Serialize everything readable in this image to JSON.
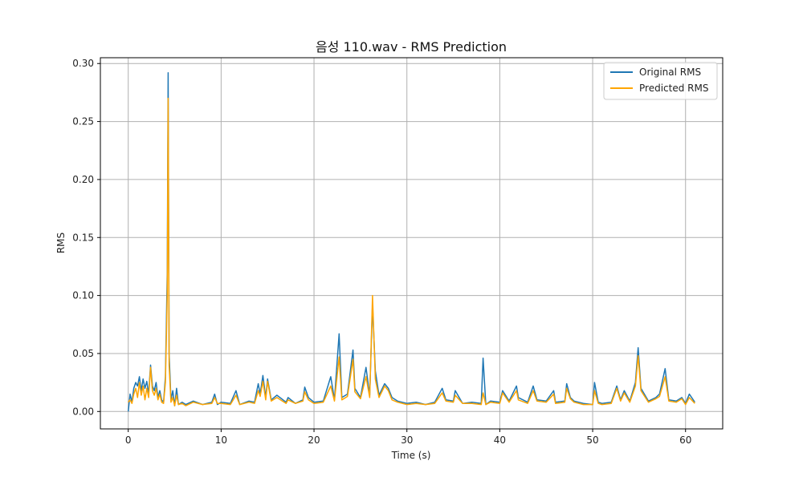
{
  "chart_data": {
    "type": "line",
    "title": "음성 110.wav - RMS Prediction",
    "xlabel": "Time (s)",
    "ylabel": "RMS",
    "xlim": [
      -3,
      64
    ],
    "ylim": [
      -0.015,
      0.305
    ],
    "x_ticks": [
      0,
      10,
      20,
      30,
      40,
      50,
      60
    ],
    "x_tick_labels": [
      "0",
      "10",
      "20",
      "30",
      "40",
      "50",
      "60"
    ],
    "y_ticks": [
      0.0,
      0.05,
      0.1,
      0.15,
      0.2,
      0.25,
      0.3
    ],
    "y_tick_labels": [
      "0.00",
      "0.05",
      "0.10",
      "0.15",
      "0.20",
      "0.25",
      "0.30"
    ],
    "grid": true,
    "legend_position": "top-right",
    "series": [
      {
        "name": "Original RMS",
        "color": "#1f77b4",
        "x": [
          0.0,
          0.2,
          0.4,
          0.6,
          0.8,
          1.0,
          1.2,
          1.4,
          1.6,
          1.8,
          2.0,
          2.2,
          2.4,
          2.6,
          2.8,
          3.0,
          3.2,
          3.4,
          3.6,
          3.8,
          4.0,
          4.2,
          4.3,
          4.4,
          4.6,
          4.8,
          5.0,
          5.2,
          5.4,
          5.8,
          6.2,
          7.0,
          8.0,
          9.0,
          9.3,
          9.6,
          10.0,
          11.0,
          11.6,
          12.0,
          13.0,
          13.6,
          14.0,
          14.2,
          14.5,
          14.8,
          15.0,
          15.4,
          16.0,
          17.0,
          17.2,
          18.0,
          18.8,
          19.0,
          19.4,
          20.0,
          21.0,
          21.8,
          22.2,
          22.7,
          23.0,
          23.6,
          24.2,
          24.4,
          25.0,
          25.6,
          26.0,
          26.3,
          26.6,
          27.0,
          27.6,
          28.0,
          28.4,
          29.0,
          30.0,
          31.0,
          32.0,
          33.0,
          33.8,
          34.2,
          35.0,
          35.2,
          36.0,
          37.0,
          38.0,
          38.2,
          38.5,
          39.0,
          40.0,
          40.3,
          41.0,
          41.8,
          42.0,
          43.0,
          43.6,
          44.0,
          45.0,
          45.8,
          46.0,
          47.0,
          47.2,
          47.6,
          48.0,
          49.0,
          50.0,
          50.2,
          50.6,
          51.0,
          52.0,
          52.6,
          53.0,
          53.4,
          54.0,
          54.6,
          54.9,
          55.2,
          56.0,
          56.8,
          57.2,
          57.8,
          58.2,
          59.0,
          59.6,
          60.0,
          60.4,
          61.0
        ],
        "y": [
          0.0,
          0.015,
          0.008,
          0.02,
          0.025,
          0.022,
          0.03,
          0.018,
          0.028,
          0.02,
          0.026,
          0.015,
          0.04,
          0.022,
          0.018,
          0.025,
          0.012,
          0.018,
          0.01,
          0.008,
          0.03,
          0.12,
          0.292,
          0.05,
          0.01,
          0.018,
          0.005,
          0.02,
          0.006,
          0.008,
          0.006,
          0.009,
          0.006,
          0.008,
          0.015,
          0.006,
          0.008,
          0.007,
          0.018,
          0.006,
          0.009,
          0.008,
          0.024,
          0.015,
          0.031,
          0.012,
          0.028,
          0.01,
          0.014,
          0.008,
          0.012,
          0.007,
          0.01,
          0.021,
          0.012,
          0.008,
          0.009,
          0.03,
          0.01,
          0.067,
          0.012,
          0.015,
          0.053,
          0.02,
          0.012,
          0.038,
          0.014,
          0.092,
          0.035,
          0.014,
          0.024,
          0.02,
          0.012,
          0.009,
          0.007,
          0.008,
          0.006,
          0.008,
          0.02,
          0.01,
          0.009,
          0.018,
          0.007,
          0.008,
          0.007,
          0.046,
          0.006,
          0.009,
          0.008,
          0.018,
          0.009,
          0.022,
          0.012,
          0.008,
          0.022,
          0.01,
          0.009,
          0.018,
          0.008,
          0.009,
          0.024,
          0.012,
          0.009,
          0.007,
          0.006,
          0.025,
          0.008,
          0.007,
          0.008,
          0.022,
          0.01,
          0.018,
          0.009,
          0.025,
          0.055,
          0.02,
          0.009,
          0.012,
          0.015,
          0.037,
          0.01,
          0.009,
          0.012,
          0.007,
          0.015,
          0.008
        ],
        "line_width": 1.5
      },
      {
        "name": "Predicted RMS",
        "color": "#ffa500",
        "x": [
          0.0,
          0.2,
          0.4,
          0.6,
          0.8,
          1.0,
          1.2,
          1.4,
          1.6,
          1.8,
          2.0,
          2.2,
          2.4,
          2.6,
          2.8,
          3.0,
          3.2,
          3.4,
          3.6,
          3.8,
          4.0,
          4.2,
          4.3,
          4.4,
          4.6,
          4.8,
          5.0,
          5.2,
          5.4,
          5.8,
          6.2,
          7.0,
          8.0,
          9.0,
          9.3,
          9.6,
          10.0,
          11.0,
          11.6,
          12.0,
          13.0,
          13.6,
          14.0,
          14.2,
          14.5,
          14.8,
          15.0,
          15.4,
          16.0,
          17.0,
          17.2,
          18.0,
          18.8,
          19.0,
          19.4,
          20.0,
          21.0,
          21.8,
          22.2,
          22.7,
          23.0,
          23.6,
          24.2,
          24.4,
          25.0,
          25.6,
          26.0,
          26.3,
          26.6,
          27.0,
          27.6,
          28.0,
          28.4,
          29.0,
          30.0,
          31.0,
          32.0,
          33.0,
          33.8,
          34.2,
          35.0,
          35.2,
          36.0,
          37.0,
          38.0,
          38.2,
          38.5,
          39.0,
          40.0,
          40.3,
          41.0,
          41.8,
          42.0,
          43.0,
          43.6,
          44.0,
          45.0,
          45.8,
          46.0,
          47.0,
          47.2,
          47.6,
          48.0,
          49.0,
          50.0,
          50.2,
          50.6,
          51.0,
          52.0,
          52.6,
          53.0,
          53.4,
          54.0,
          54.6,
          54.9,
          55.2,
          56.0,
          56.8,
          57.2,
          57.8,
          58.2,
          59.0,
          59.6,
          60.0,
          60.4,
          61.0
        ],
        "y": [
          0.008,
          0.01,
          0.007,
          0.015,
          0.02,
          0.012,
          0.025,
          0.014,
          0.022,
          0.01,
          0.02,
          0.012,
          0.038,
          0.018,
          0.014,
          0.02,
          0.01,
          0.015,
          0.008,
          0.007,
          0.025,
          0.1,
          0.27,
          0.04,
          0.008,
          0.012,
          0.005,
          0.014,
          0.006,
          0.007,
          0.005,
          0.008,
          0.006,
          0.007,
          0.012,
          0.007,
          0.007,
          0.006,
          0.014,
          0.006,
          0.008,
          0.007,
          0.018,
          0.013,
          0.026,
          0.01,
          0.026,
          0.009,
          0.012,
          0.007,
          0.01,
          0.007,
          0.009,
          0.017,
          0.01,
          0.007,
          0.008,
          0.022,
          0.009,
          0.047,
          0.01,
          0.013,
          0.045,
          0.017,
          0.011,
          0.03,
          0.012,
          0.1,
          0.028,
          0.012,
          0.022,
          0.018,
          0.01,
          0.008,
          0.006,
          0.007,
          0.006,
          0.007,
          0.016,
          0.009,
          0.008,
          0.014,
          0.007,
          0.007,
          0.006,
          0.016,
          0.006,
          0.008,
          0.007,
          0.016,
          0.008,
          0.018,
          0.01,
          0.007,
          0.018,
          0.009,
          0.008,
          0.015,
          0.007,
          0.008,
          0.02,
          0.011,
          0.008,
          0.006,
          0.006,
          0.018,
          0.007,
          0.006,
          0.007,
          0.02,
          0.009,
          0.016,
          0.008,
          0.022,
          0.048,
          0.018,
          0.008,
          0.011,
          0.013,
          0.03,
          0.009,
          0.008,
          0.011,
          0.006,
          0.012,
          0.007
        ],
        "line_width": 1.5
      }
    ]
  }
}
